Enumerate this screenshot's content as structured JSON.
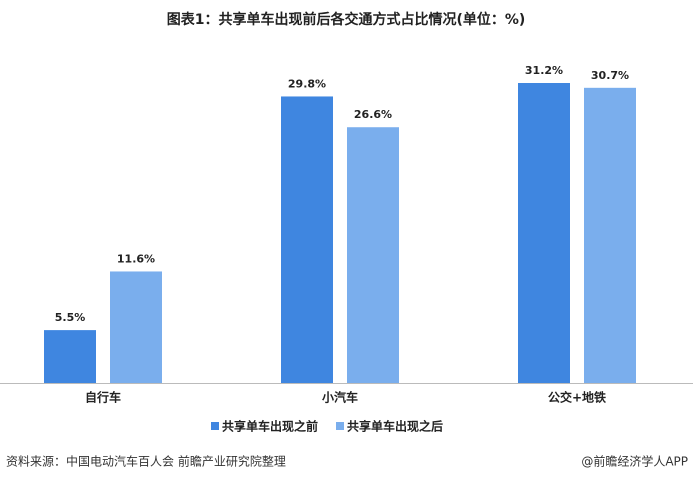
{
  "chart_data": {
    "type": "bar",
    "title": "图表1：共享单车出现前后各交通方式占比情况(单位：%)",
    "categories": [
      "自行车",
      "小汽车",
      "公交+地铁"
    ],
    "series": [
      {
        "name": "共享单车出现之前",
        "color": "#3f86e0",
        "values": [
          5.5,
          29.8,
          31.2
        ],
        "value_labels": [
          "5.5%",
          "29.8%",
          "31.2%"
        ]
      },
      {
        "name": "共享单车出现之后",
        "color": "#7aaeed",
        "values": [
          11.6,
          26.6,
          30.7
        ],
        "value_labels": [
          "11.6%",
          "26.6%",
          "30.7%"
        ]
      }
    ],
    "source": "资料来源：中国电动汽车百人会 前瞻产业研究院整理",
    "credit": "@前瞻经济学人APP"
  }
}
